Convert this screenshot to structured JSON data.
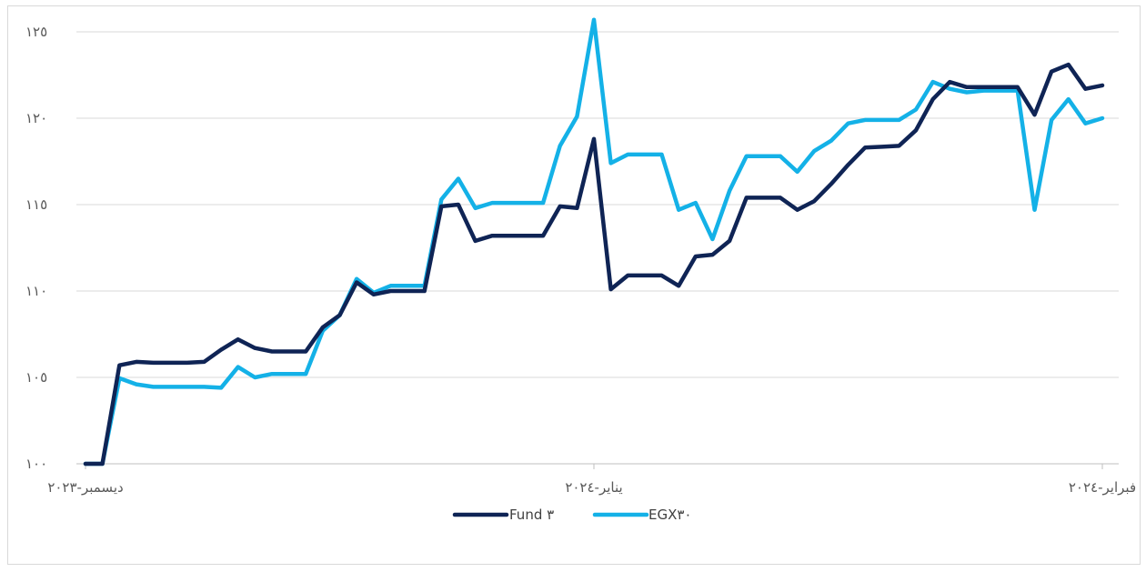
{
  "chart_data": {
    "type": "line",
    "title": "",
    "xlabel": "",
    "ylabel": "",
    "ylim": [
      100,
      125
    ],
    "yticks": [
      100,
      105,
      110,
      115,
      120,
      125
    ],
    "ytick_labels": [
      "١٠٠",
      "١٠٥",
      "١١٠",
      "١١٥",
      "١٢٠",
      "١٢٥"
    ],
    "xtick_labels": [
      {
        "label": "ديسمبر-٢٠٢٣",
        "index": 0
      },
      {
        "label": "يناير-٢٠٢٤",
        "index": 30
      },
      {
        "label": "فبراير-٢٠٢٤",
        "index": 60
      }
    ],
    "grid": true,
    "legend_position": "bottom",
    "series": [
      {
        "name": "Fund ٣",
        "color": "#0f2455",
        "values": [
          100.0,
          100.0,
          105.7,
          105.9,
          105.85,
          105.85,
          105.85,
          105.9,
          106.6,
          107.2,
          106.7,
          106.5,
          106.5,
          106.5,
          107.9,
          108.6,
          110.5,
          109.8,
          110.0,
          110.0,
          110.0,
          114.9,
          115.0,
          112.9,
          113.2,
          113.2,
          113.2,
          113.2,
          114.9,
          114.8,
          118.8,
          110.1,
          110.9,
          110.9,
          110.9,
          110.3,
          112.0,
          112.1,
          112.9,
          115.4,
          115.4,
          115.4,
          114.7,
          115.2,
          116.2,
          117.3,
          118.3,
          118.35,
          118.4,
          119.3,
          121.1,
          122.1,
          121.8,
          121.8,
          121.8,
          121.8,
          120.2,
          122.7,
          123.1,
          121.7,
          121.9
        ]
      },
      {
        "name": "EGX٣٠",
        "color": "#14b1e7",
        "values": [
          100.0,
          100.0,
          104.95,
          104.6,
          104.45,
          104.45,
          104.45,
          104.45,
          104.4,
          105.6,
          105.0,
          105.2,
          105.2,
          105.2,
          107.7,
          108.6,
          110.7,
          109.9,
          110.3,
          110.3,
          110.3,
          115.3,
          116.5,
          114.8,
          115.1,
          115.1,
          115.1,
          115.1,
          118.4,
          120.1,
          125.7,
          117.4,
          117.9,
          117.9,
          117.9,
          114.7,
          115.1,
          113.0,
          115.8,
          117.8,
          117.8,
          117.8,
          116.9,
          118.1,
          118.7,
          119.7,
          119.9,
          119.9,
          119.9,
          120.5,
          122.1,
          121.7,
          121.5,
          121.6,
          121.6,
          121.6,
          114.7,
          119.9,
          121.1,
          119.7,
          120.0
        ]
      }
    ]
  }
}
